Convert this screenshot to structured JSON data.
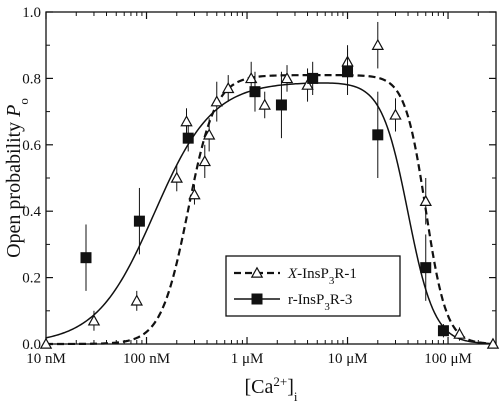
{
  "chart_data": {
    "type": "scatter",
    "title": "",
    "xscale": "log",
    "xlim_molar": [
      1e-08,
      0.0003
    ],
    "ylim": [
      0,
      1.0
    ],
    "xticks": [
      {
        "value": 1e-08,
        "label": "10 nM"
      },
      {
        "value": 1e-07,
        "label": "100 nM"
      },
      {
        "value": 1e-06,
        "label": "1 μM"
      },
      {
        "value": 1e-05,
        "label": "10 μM"
      },
      {
        "value": 0.0001,
        "label": "100 μM"
      }
    ],
    "yticks": [
      {
        "value": 0.0,
        "label": "0.0"
      },
      {
        "value": 0.2,
        "label": "0.2"
      },
      {
        "value": 0.4,
        "label": "0.4"
      },
      {
        "value": 0.6,
        "label": "0.6"
      },
      {
        "value": 0.8,
        "label": "0.8"
      },
      {
        "value": 1.0,
        "label": "1.0"
      }
    ],
    "xlabel": {
      "pre": "[Ca",
      "sup": "2+",
      "post": "]",
      "sub": "i"
    },
    "ylabel": {
      "main": "Open probability ",
      "var": "P",
      "sub": "o"
    },
    "legend_position": "lower-right",
    "series": [
      {
        "name": "X-InsP3R-1",
        "legend": {
          "prefix_italic": "X",
          "rest": "-InsP",
          "sub": "3",
          "post": "R-1"
        },
        "marker": "open-triangle",
        "line": "dashed",
        "color": "#111111",
        "points": [
          {
            "x": 1e-08,
            "y": 0.0,
            "err": 0.0
          },
          {
            "x": 3e-08,
            "y": 0.07,
            "err": 0.03
          },
          {
            "x": 8e-08,
            "y": 0.13,
            "err": 0.03
          },
          {
            "x": 2e-07,
            "y": 0.5,
            "err": 0.04
          },
          {
            "x": 2.5e-07,
            "y": 0.67,
            "err": 0.04
          },
          {
            "x": 3e-07,
            "y": 0.45,
            "err": 0.03
          },
          {
            "x": 3.8e-07,
            "y": 0.55,
            "err": 0.05
          },
          {
            "x": 4.2e-07,
            "y": 0.63,
            "err": 0.05
          },
          {
            "x": 5e-07,
            "y": 0.73,
            "err": 0.06
          },
          {
            "x": 6.5e-07,
            "y": 0.77,
            "err": 0.04
          },
          {
            "x": 1.1e-06,
            "y": 0.8,
            "err": 0.05
          },
          {
            "x": 1.5e-06,
            "y": 0.72,
            "err": 0.04
          },
          {
            "x": 2.5e-06,
            "y": 0.8,
            "err": 0.04
          },
          {
            "x": 4e-06,
            "y": 0.78,
            "err": 0.05
          },
          {
            "x": 1e-05,
            "y": 0.85,
            "err": 0.05
          },
          {
            "x": 2e-05,
            "y": 0.9,
            "err": 0.07
          },
          {
            "x": 3e-05,
            "y": 0.69,
            "err": 0.05
          },
          {
            "x": 6e-05,
            "y": 0.43,
            "err": 0.07
          },
          {
            "x": 0.00013,
            "y": 0.03,
            "err": 0.02
          },
          {
            "x": 0.00028,
            "y": 0.0,
            "err": 0.0
          }
        ],
        "fit": {
          "Pmax": 0.81,
          "K_act": 2.6e-07,
          "n_act": 3.2,
          "K_inh": 6e-05,
          "n_inh": 4.2
        }
      },
      {
        "name": "r-InsP3R-3",
        "legend": {
          "prefix_italic": "",
          "rest": "r-InsP",
          "sub": "3",
          "post": "R-3"
        },
        "marker": "filled-square",
        "line": "solid",
        "color": "#111111",
        "points": [
          {
            "x": 2.5e-08,
            "y": 0.26,
            "err": 0.1
          },
          {
            "x": 8.5e-08,
            "y": 0.37,
            "err": 0.1
          },
          {
            "x": 2.6e-07,
            "y": 0.62,
            "err": 0.04
          },
          {
            "x": 1.2e-06,
            "y": 0.76,
            "err": 0.06
          },
          {
            "x": 2.2e-06,
            "y": 0.72,
            "err": 0.1
          },
          {
            "x": 4.5e-06,
            "y": 0.8,
            "err": 0.05
          },
          {
            "x": 1e-05,
            "y": 0.82,
            "err": 0.07
          },
          {
            "x": 2e-05,
            "y": 0.63,
            "err": 0.13
          },
          {
            "x": 6e-05,
            "y": 0.23,
            "err": 0.1
          },
          {
            "x": 9e-05,
            "y": 0.04,
            "err": 0.02
          }
        ],
        "fit": {
          "Pmax": 0.79,
          "K_act": 1.2e-07,
          "n_act": 1.5,
          "K_inh": 4e-05,
          "n_inh": 3.3
        }
      }
    ]
  }
}
